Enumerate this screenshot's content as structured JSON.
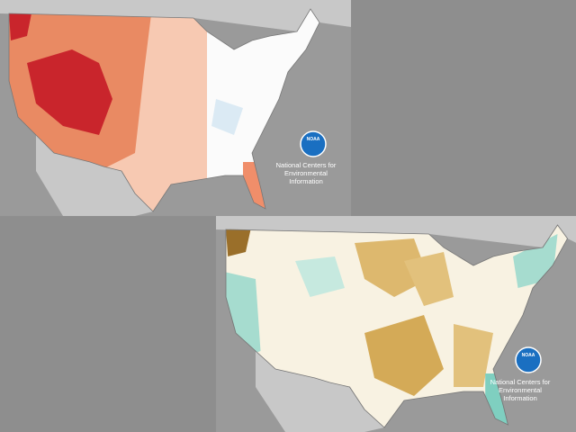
{
  "top_map": {
    "logo": "NOAA",
    "credit": [
      "National Centers for",
      "Environmental",
      "Information"
    ]
  },
  "bottom_map": {
    "logo": "NOAA",
    "credit": [
      "National Centers for",
      "Environmental",
      "Information"
    ]
  }
}
